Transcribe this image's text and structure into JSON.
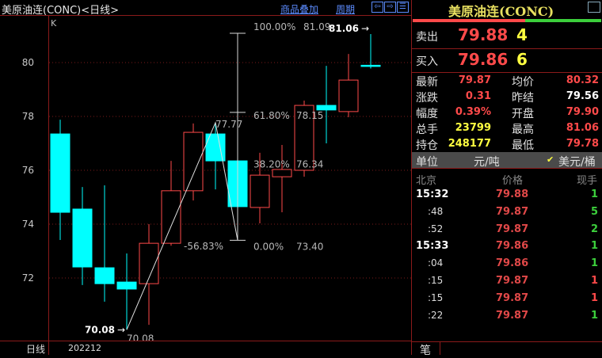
{
  "header": {
    "title": "美原油连(CONC)<日线>",
    "overlay_link": "商品叠加",
    "period_link": "周期",
    "nav": [
      "⇦",
      "⇨",
      "☰"
    ]
  },
  "chart": {
    "indicator_label": "K",
    "period_label": "日线",
    "date_label": "202212",
    "y_ticks": [
      80,
      78,
      76,
      74,
      72
    ],
    "low_marker": "70.08",
    "low_label": "70.08",
    "high_marker": "81.06",
    "zig_peak_label": "77.77",
    "zig_pct_label": "-56.83%",
    "fib": [
      {
        "pct": "100.00%",
        "val": "81.09",
        "price": 81.09
      },
      {
        "pct": "61.80%",
        "val": "78.15",
        "price": 78.15
      },
      {
        "pct": "38.20%",
        "val": "76.34",
        "price": 76.34
      },
      {
        "pct": "0.00%",
        "val": "73.40",
        "price": 73.4
      }
    ],
    "colors": {
      "up": "#ff4a4a",
      "down": "#00ffff",
      "grid": "#7a1a1a"
    }
  },
  "chart_data": {
    "type": "candlestick",
    "ylim": [
      69.6,
      82.2
    ],
    "candles": [
      {
        "o": 77.35,
        "h": 77.88,
        "l": 73.41,
        "c": 74.44
      },
      {
        "o": 74.56,
        "h": 75.38,
        "l": 71.74,
        "c": 72.41
      },
      {
        "o": 72.38,
        "h": 75.44,
        "l": 71.12,
        "c": 71.79
      },
      {
        "o": 71.85,
        "h": 72.91,
        "l": 70.08,
        "c": 71.59
      },
      {
        "o": 71.79,
        "h": 74.0,
        "l": 70.26,
        "c": 73.29
      },
      {
        "o": 73.29,
        "h": 76.35,
        "l": 73.2,
        "c": 75.24
      },
      {
        "o": 75.24,
        "h": 77.74,
        "l": 74.88,
        "c": 77.41
      },
      {
        "o": 77.35,
        "h": 77.77,
        "l": 75.29,
        "c": 76.35
      },
      {
        "o": 76.35,
        "h": 76.4,
        "l": 73.4,
        "c": 74.65
      },
      {
        "o": 74.62,
        "h": 76.65,
        "l": 74.03,
        "c": 75.82
      },
      {
        "o": 75.76,
        "h": 76.94,
        "l": 74.44,
        "c": 76.03
      },
      {
        "o": 76.0,
        "h": 78.59,
        "l": 75.76,
        "c": 78.41
      },
      {
        "o": 78.41,
        "h": 79.88,
        "l": 77.0,
        "c": 78.24
      },
      {
        "o": 78.18,
        "h": 80.32,
        "l": 77.97,
        "c": 79.35
      },
      {
        "o": 79.9,
        "h": 81.06,
        "l": 79.78,
        "c": 79.87
      }
    ],
    "zigzag": [
      70.08,
      77.77,
      73.4
    ]
  },
  "panel": {
    "title": "美原油连(CONC)",
    "ask": {
      "label": "卖出",
      "price": "79.88",
      "vol": "4"
    },
    "bid": {
      "label": "买入",
      "price": "79.86",
      "vol": "6"
    },
    "stats": [
      {
        "l1": "最新",
        "v1": "79.87",
        "c1": "red",
        "l2": "均价",
        "v2": "80.32",
        "c2": "red"
      },
      {
        "l1": "涨跌",
        "v1": "0.31",
        "c1": "red",
        "l2": "昨结",
        "v2": "79.56",
        "c2": "wht"
      },
      {
        "l1": "幅度",
        "v1": "0.39%",
        "c1": "red",
        "l2": "开盘",
        "v2": "79.90",
        "c2": "red"
      },
      {
        "l1": "总手",
        "v1": "23799",
        "c1": "yel",
        "l2": "最高",
        "v2": "81.06",
        "c2": "red"
      },
      {
        "l1": "持仓",
        "v1": "248177",
        "c1": "yel",
        "l2": "最低",
        "v2": "79.78",
        "c2": "red"
      }
    ],
    "unit": {
      "label": "单位",
      "opt1": "元/吨",
      "opt2": "美元/桶",
      "checked": "opt2"
    },
    "trades_header": [
      "北京",
      "价格",
      "现手"
    ],
    "trades": [
      {
        "t": "15:32",
        "p": "79.88",
        "v": "1",
        "vc": "grn",
        "major": true
      },
      {
        "t": ":48",
        "p": "79.87",
        "v": "5",
        "vc": "grn"
      },
      {
        "t": ":52",
        "p": "79.87",
        "v": "2",
        "vc": "grn"
      },
      {
        "t": "15:33",
        "p": "79.86",
        "v": "1",
        "vc": "grn",
        "major": true
      },
      {
        "t": ":04",
        "p": "79.86",
        "v": "1",
        "vc": "grn"
      },
      {
        "t": ":15",
        "p": "79.87",
        "v": "1",
        "vc": "red"
      },
      {
        "t": ":15",
        "p": "79.87",
        "v": "1",
        "vc": "red"
      },
      {
        "t": ":22",
        "p": "79.87",
        "v": "1",
        "vc": "grn"
      }
    ],
    "tab": "笔"
  }
}
